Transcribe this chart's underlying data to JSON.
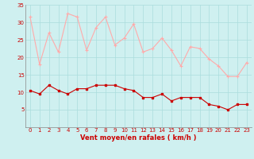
{
  "x": [
    0,
    1,
    2,
    3,
    4,
    5,
    6,
    7,
    8,
    9,
    10,
    11,
    12,
    13,
    14,
    15,
    16,
    17,
    18,
    19,
    20,
    21,
    22,
    23
  ],
  "wind_avg": [
    10.5,
    9.5,
    12,
    10.5,
    9.5,
    11,
    11,
    12,
    12,
    12,
    11,
    10.5,
    8.5,
    8.5,
    9.5,
    7.5,
    8.5,
    8.5,
    8.5,
    6.5,
    6,
    5,
    6.5,
    6.5
  ],
  "wind_gust": [
    31.5,
    18,
    27,
    21.5,
    32.5,
    31.5,
    22,
    28.5,
    31.5,
    23.5,
    25.5,
    29.5,
    21.5,
    22.5,
    25.5,
    22,
    17.5,
    23,
    22.5,
    19.5,
    17.5,
    14.5,
    14.5,
    18.5
  ],
  "ylim": [
    0,
    35
  ],
  "xlim": [
    -0.5,
    23.5
  ],
  "yticks": [
    5,
    10,
    15,
    20,
    25,
    30,
    35
  ],
  "xticks": [
    0,
    1,
    2,
    3,
    4,
    5,
    6,
    7,
    8,
    9,
    10,
    11,
    12,
    13,
    14,
    15,
    16,
    17,
    18,
    19,
    20,
    21,
    22,
    23
  ],
  "xlabel": "Vent moyen/en rafales ( km/h )",
  "bg_color": "#cff0f0",
  "grid_color": "#aadddd",
  "avg_color": "#cc0000",
  "gust_color": "#ffaaaa",
  "marker_avg": 3,
  "marker_gust": 3,
  "line_width": 0.8
}
